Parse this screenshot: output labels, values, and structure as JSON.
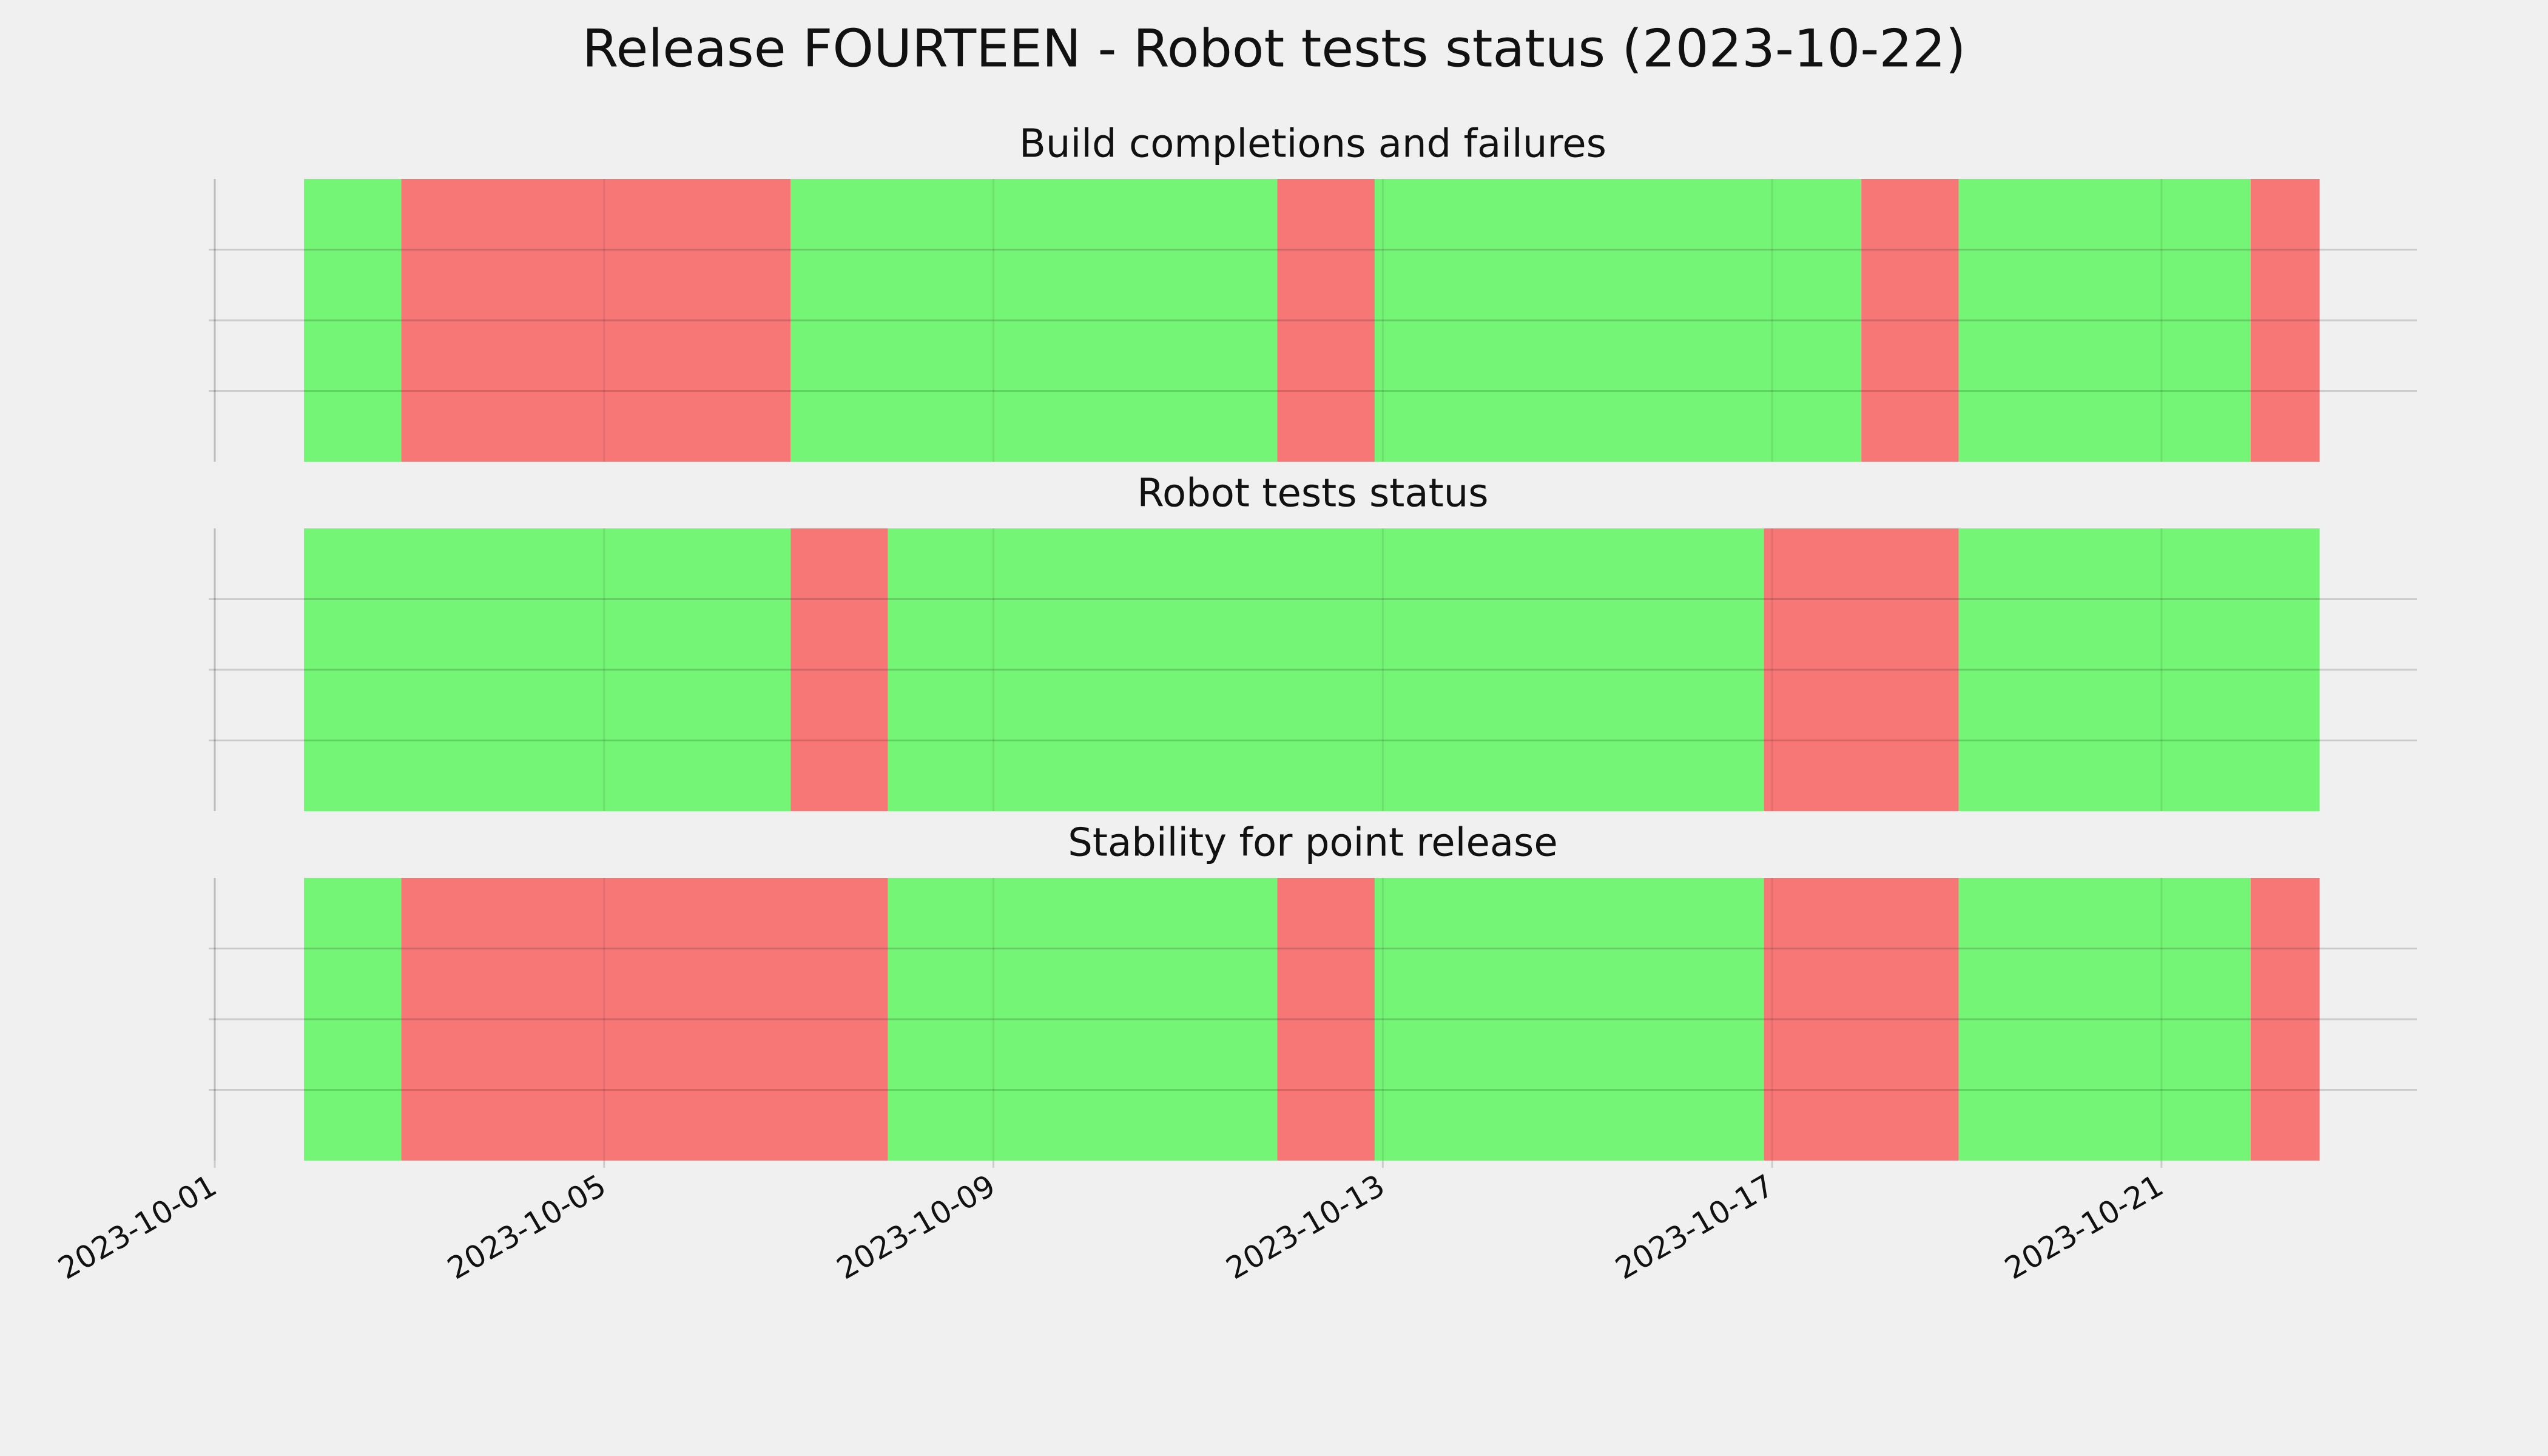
{
  "chart_data": {
    "type": "timeline",
    "title": "Release FOURTEEN - Robot tests status (2023-10-22)",
    "xlim": [
      "2023-10-01T00:00",
      "2023-10-23T15:00"
    ],
    "xticks": [
      "2023-10-01",
      "2023-10-05",
      "2023-10-09",
      "2023-10-13",
      "2023-10-17",
      "2023-10-21"
    ],
    "ylim": [
      0,
      1
    ],
    "yticks": [
      0.25,
      0.5,
      0.75
    ],
    "grid": true,
    "panels": [
      {
        "title": "Build completions and failures",
        "segments": [
          {
            "start": "2023-10-01T22:00",
            "end": "2023-10-02T22:00",
            "color": "#75f575"
          },
          {
            "start": "2023-10-02T22:00",
            "end": "2023-10-06T22:00",
            "color": "#f77777"
          },
          {
            "start": "2023-10-06T22:00",
            "end": "2023-10-11T22:00",
            "color": "#75f575"
          },
          {
            "start": "2023-10-11T22:00",
            "end": "2023-10-12T22:00",
            "color": "#f77777"
          },
          {
            "start": "2023-10-12T22:00",
            "end": "2023-10-17T22:00",
            "color": "#75f575"
          },
          {
            "start": "2023-10-17T22:00",
            "end": "2023-10-18T22:00",
            "color": "#f77777"
          },
          {
            "start": "2023-10-18T22:00",
            "end": "2023-10-21T22:00",
            "color": "#75f575"
          },
          {
            "start": "2023-10-21T22:00",
            "end": "2023-10-22T15:00",
            "color": "#f77777"
          }
        ]
      },
      {
        "title": "Robot tests status",
        "segments": [
          {
            "start": "2023-10-01T22:00",
            "end": "2023-10-06T22:00",
            "color": "#75f575"
          },
          {
            "start": "2023-10-06T22:00",
            "end": "2023-10-07T22:00",
            "color": "#f77777"
          },
          {
            "start": "2023-10-07T22:00",
            "end": "2023-10-16T22:00",
            "color": "#75f575"
          },
          {
            "start": "2023-10-16T22:00",
            "end": "2023-10-18T22:00",
            "color": "#f77777"
          },
          {
            "start": "2023-10-18T22:00",
            "end": "2023-10-22T15:00",
            "color": "#75f575"
          }
        ]
      },
      {
        "title": "Stability for point release",
        "segments": [
          {
            "start": "2023-10-01T22:00",
            "end": "2023-10-02T22:00",
            "color": "#75f575"
          },
          {
            "start": "2023-10-02T22:00",
            "end": "2023-10-07T22:00",
            "color": "#f77777"
          },
          {
            "start": "2023-10-07T22:00",
            "end": "2023-10-11T22:00",
            "color": "#75f575"
          },
          {
            "start": "2023-10-11T22:00",
            "end": "2023-10-12T22:00",
            "color": "#f77777"
          },
          {
            "start": "2023-10-12T22:00",
            "end": "2023-10-16T22:00",
            "color": "#75f575"
          },
          {
            "start": "2023-10-16T22:00",
            "end": "2023-10-18T22:00",
            "color": "#f77777"
          },
          {
            "start": "2023-10-18T22:00",
            "end": "2023-10-21T22:00",
            "color": "#75f575"
          },
          {
            "start": "2023-10-21T22:00",
            "end": "2023-10-22T15:00",
            "color": "#f77777"
          }
        ]
      }
    ]
  }
}
